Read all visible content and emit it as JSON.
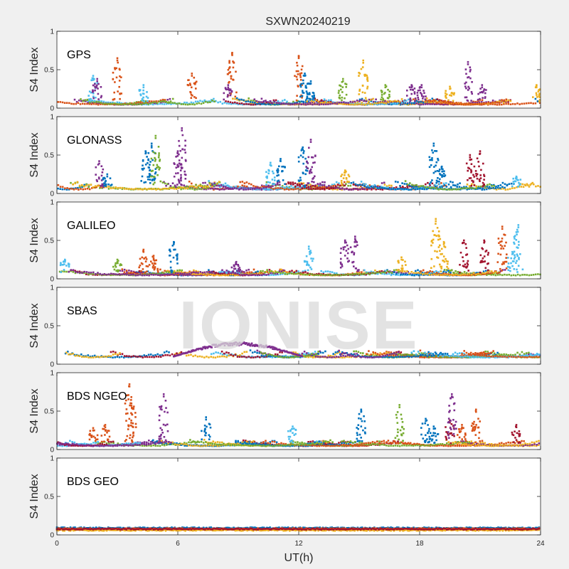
{
  "figure": {
    "title": "SXWN20240219",
    "watermark": "IONISE",
    "xlabel": "UT(h)",
    "ylabel": "S4 Index",
    "x_ticks": [
      "0",
      "6",
      "12",
      "18",
      "24"
    ],
    "y_ticks": [
      "0",
      "0.5",
      "1"
    ]
  },
  "series_colors": [
    "#0072BD",
    "#D95319",
    "#EDB120",
    "#7E2F8E",
    "#77AC30",
    "#4DBEEE",
    "#A2142F"
  ],
  "chart_data": [
    {
      "type": "scatter",
      "label": "GPS",
      "xlim": [
        0,
        24
      ],
      "ylim": [
        0,
        1
      ],
      "x_ticks": [
        0,
        6,
        12,
        18,
        24
      ],
      "y_ticks": [
        0,
        0.5,
        1
      ],
      "baseline_s4": [
        0.03,
        0.12
      ],
      "bursts": [
        {
          "x": 1.8,
          "peak": 0.42,
          "color": 5
        },
        {
          "x": 2.0,
          "peak": 0.38,
          "color": 3
        },
        {
          "x": 3.0,
          "peak": 0.65,
          "color": 1
        },
        {
          "x": 4.3,
          "peak": 0.3,
          "color": 5
        },
        {
          "x": 6.7,
          "peak": 0.45,
          "color": 1
        },
        {
          "x": 8.7,
          "peak": 0.72,
          "color": 1
        },
        {
          "x": 8.5,
          "peak": 0.3,
          "color": 3
        },
        {
          "x": 12.0,
          "peak": 0.68,
          "color": 1
        },
        {
          "x": 12.3,
          "peak": 0.45,
          "color": 0
        },
        {
          "x": 12.6,
          "peak": 0.35,
          "color": 0
        },
        {
          "x": 14.2,
          "peak": 0.38,
          "color": 4
        },
        {
          "x": 15.2,
          "peak": 0.62,
          "color": 2
        },
        {
          "x": 16.3,
          "peak": 0.3,
          "color": 4
        },
        {
          "x": 17.6,
          "peak": 0.3,
          "color": 3
        },
        {
          "x": 18.1,
          "peak": 0.3,
          "color": 3
        },
        {
          "x": 19.5,
          "peak": 0.28,
          "color": 2
        },
        {
          "x": 20.4,
          "peak": 0.6,
          "color": 3
        },
        {
          "x": 21.1,
          "peak": 0.3,
          "color": 3
        },
        {
          "x": 23.8,
          "peak": 0.3,
          "color": 2
        }
      ]
    },
    {
      "type": "scatter",
      "label": "GLONASS",
      "xlim": [
        0,
        24
      ],
      "ylim": [
        0,
        1
      ],
      "x_ticks": [
        0,
        6,
        12,
        18,
        24
      ],
      "y_ticks": [
        0,
        0.5,
        1
      ],
      "baseline_s4": [
        0.03,
        0.15
      ],
      "bursts": [
        {
          "x": 2.1,
          "peak": 0.42,
          "color": 3
        },
        {
          "x": 2.5,
          "peak": 0.25,
          "color": 0
        },
        {
          "x": 4.4,
          "peak": 0.55,
          "color": 0
        },
        {
          "x": 4.7,
          "peak": 0.65,
          "color": 0
        },
        {
          "x": 4.9,
          "peak": 0.75,
          "color": 4
        },
        {
          "x": 6.2,
          "peak": 0.85,
          "color": 3
        },
        {
          "x": 6.0,
          "peak": 0.55,
          "color": 3
        },
        {
          "x": 10.6,
          "peak": 0.4,
          "color": 5
        },
        {
          "x": 11.1,
          "peak": 0.45,
          "color": 0
        },
        {
          "x": 12.2,
          "peak": 0.6,
          "color": 0
        },
        {
          "x": 12.6,
          "peak": 0.7,
          "color": 3
        },
        {
          "x": 14.3,
          "peak": 0.3,
          "color": 2
        },
        {
          "x": 18.7,
          "peak": 0.65,
          "color": 0
        },
        {
          "x": 19.1,
          "peak": 0.35,
          "color": 0
        },
        {
          "x": 20.5,
          "peak": 0.5,
          "color": 6
        },
        {
          "x": 21.0,
          "peak": 0.55,
          "color": 6
        },
        {
          "x": 22.8,
          "peak": 0.22,
          "color": 5
        }
      ]
    },
    {
      "type": "scatter",
      "label": "GALILEO",
      "xlim": [
        0,
        24
      ],
      "ylim": [
        0,
        1
      ],
      "x_ticks": [
        0,
        6,
        12,
        18,
        24
      ],
      "y_ticks": [
        0,
        0.5,
        1
      ],
      "baseline_s4": [
        0.03,
        0.12
      ],
      "bursts": [
        {
          "x": 0.4,
          "peak": 0.25,
          "color": 5
        },
        {
          "x": 3.0,
          "peak": 0.25,
          "color": 4
        },
        {
          "x": 4.3,
          "peak": 0.38,
          "color": 1
        },
        {
          "x": 4.8,
          "peak": 0.3,
          "color": 1
        },
        {
          "x": 5.8,
          "peak": 0.48,
          "color": 0
        },
        {
          "x": 8.9,
          "peak": 0.22,
          "color": 3
        },
        {
          "x": 12.5,
          "peak": 0.42,
          "color": 5
        },
        {
          "x": 14.3,
          "peak": 0.5,
          "color": 3
        },
        {
          "x": 14.8,
          "peak": 0.55,
          "color": 3
        },
        {
          "x": 17.1,
          "peak": 0.28,
          "color": 2
        },
        {
          "x": 18.8,
          "peak": 0.78,
          "color": 2
        },
        {
          "x": 19.2,
          "peak": 0.48,
          "color": 2
        },
        {
          "x": 20.2,
          "peak": 0.5,
          "color": 6
        },
        {
          "x": 21.2,
          "peak": 0.5,
          "color": 6
        },
        {
          "x": 22.1,
          "peak": 0.68,
          "color": 1
        },
        {
          "x": 22.9,
          "peak": 0.7,
          "color": 5
        },
        {
          "x": 22.6,
          "peak": 0.35,
          "color": 5
        }
      ]
    },
    {
      "type": "scatter",
      "label": "SBAS",
      "xlim": [
        0,
        24
      ],
      "ylim": [
        0,
        1
      ],
      "x_ticks": [
        0,
        6,
        12,
        18,
        24
      ],
      "y_ticks": [
        0,
        0.5,
        1
      ],
      "baseline_s4": [
        0.07,
        0.17
      ],
      "hump": {
        "from": 5.8,
        "to": 12.2,
        "peak": 0.27,
        "color": 3
      },
      "bursts": []
    },
    {
      "type": "scatter",
      "label": "BDS NGEO",
      "xlim": [
        0,
        24
      ],
      "ylim": [
        0,
        1
      ],
      "x_ticks": [
        0,
        6,
        12,
        18,
        24
      ],
      "y_ticks": [
        0,
        0.5,
        1
      ],
      "baseline_s4": [
        0.03,
        0.12
      ],
      "bursts": [
        {
          "x": 1.8,
          "peak": 0.28,
          "color": 1
        },
        {
          "x": 2.4,
          "peak": 0.32,
          "color": 1
        },
        {
          "x": 3.6,
          "peak": 0.85,
          "color": 1
        },
        {
          "x": 3.7,
          "peak": 0.6,
          "color": 1
        },
        {
          "x": 5.3,
          "peak": 0.72,
          "color": 3
        },
        {
          "x": 7.4,
          "peak": 0.42,
          "color": 0
        },
        {
          "x": 11.7,
          "peak": 0.3,
          "color": 5
        },
        {
          "x": 15.1,
          "peak": 0.52,
          "color": 0
        },
        {
          "x": 17.0,
          "peak": 0.58,
          "color": 4
        },
        {
          "x": 18.3,
          "peak": 0.4,
          "color": 0
        },
        {
          "x": 18.7,
          "peak": 0.3,
          "color": 0
        },
        {
          "x": 19.5,
          "peak": 0.38,
          "color": 6
        },
        {
          "x": 19.6,
          "peak": 0.72,
          "color": 3
        },
        {
          "x": 20.1,
          "peak": 0.32,
          "color": 1
        },
        {
          "x": 20.8,
          "peak": 0.52,
          "color": 1
        },
        {
          "x": 22.8,
          "peak": 0.32,
          "color": 6
        }
      ]
    },
    {
      "type": "scatter",
      "label": "BDS GEO",
      "xlim": [
        0,
        24
      ],
      "ylim": [
        0,
        1
      ],
      "x_ticks": [
        0,
        6,
        12,
        18,
        24
      ],
      "y_ticks": [
        0,
        0.5,
        1
      ],
      "flat_bands": [
        {
          "s4": 0.09,
          "color": 0
        },
        {
          "s4": 0.08,
          "color": 1
        },
        {
          "s4": 0.06,
          "color": 2
        },
        {
          "s4": 0.075,
          "color": 6
        }
      ],
      "bursts": []
    }
  ]
}
